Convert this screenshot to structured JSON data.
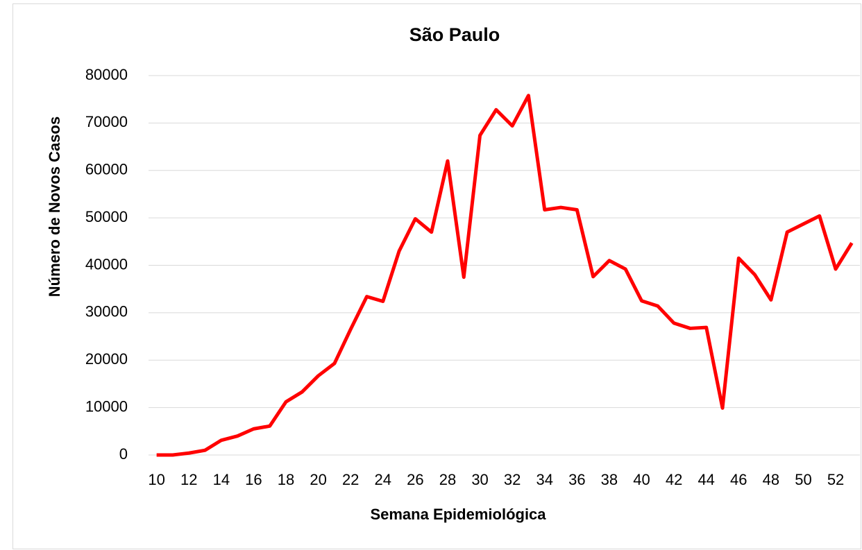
{
  "chart_data": {
    "type": "line",
    "title": "São Paulo",
    "x_label": "Semana Epidemiológica",
    "y_label": "Número de Novos Casos",
    "x": [
      10,
      11,
      12,
      13,
      14,
      15,
      16,
      17,
      18,
      19,
      20,
      21,
      22,
      23,
      24,
      25,
      26,
      27,
      28,
      29,
      30,
      31,
      32,
      33,
      34,
      35,
      36,
      37,
      38,
      39,
      40,
      41,
      42,
      43,
      44,
      45,
      46,
      47,
      48,
      49,
      50,
      51,
      52,
      53
    ],
    "series": [
      {
        "name": "São Paulo",
        "color": "#ff0000",
        "values": [
          0,
          0,
          400,
          1000,
          3100,
          4000,
          5500,
          6100,
          11200,
          13300,
          16700,
          19300,
          26500,
          33400,
          32400,
          43000,
          49800,
          47000,
          62000,
          37500,
          67400,
          72800,
          69400,
          75800,
          51700,
          52200,
          51700,
          37600,
          41000,
          39200,
          32500,
          31400,
          27800,
          26700,
          26900,
          9900,
          41500,
          38000,
          32700,
          47000,
          48700,
          50400,
          39200,
          44700
        ]
      }
    ],
    "xlim": [
      9.5,
      53.5
    ],
    "xticks": [
      10,
      12,
      14,
      16,
      18,
      20,
      22,
      24,
      26,
      28,
      30,
      32,
      34,
      36,
      38,
      40,
      42,
      44,
      46,
      48,
      50,
      52
    ],
    "ylim": [
      0,
      80000
    ],
    "yticks": [
      0,
      10000,
      20000,
      30000,
      40000,
      50000,
      60000,
      70000,
      80000
    ],
    "grid": true
  }
}
